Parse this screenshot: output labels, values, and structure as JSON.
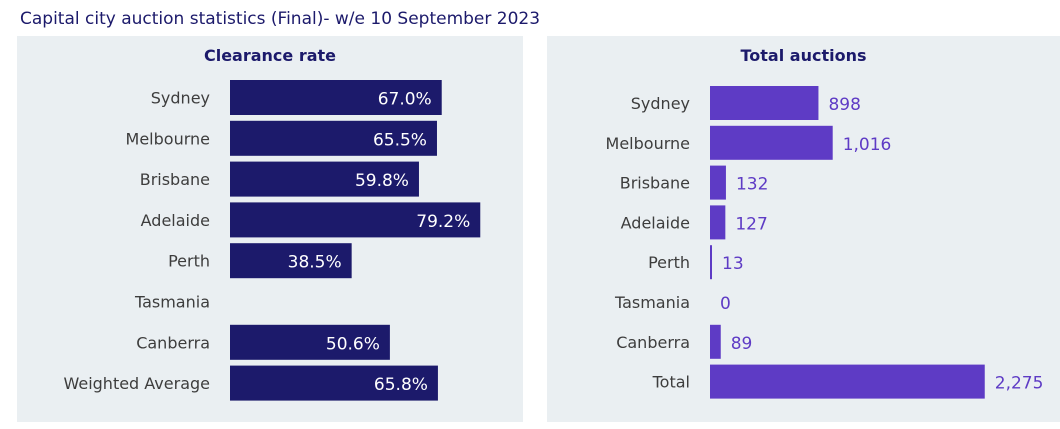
{
  "title": "Capital city auction statistics (Final)- w/e 10 September 2023",
  "colors": {
    "clearance_bar": "#1c1a6b",
    "auctions_bar": "#5e3bc5",
    "panel_bg": "#eaeff2"
  },
  "chart_data": [
    {
      "type": "bar",
      "orientation": "horizontal",
      "title": "Clearance rate",
      "categories": [
        "Sydney",
        "Melbourne",
        "Brisbane",
        "Adelaide",
        "Perth",
        "Tasmania",
        "Canberra",
        "Weighted Average"
      ],
      "values": [
        67.0,
        65.5,
        59.8,
        79.2,
        38.5,
        null,
        50.6,
        65.8
      ],
      "labels": [
        "67.0%",
        "65.5%",
        "59.8%",
        "79.2%",
        "38.5%",
        "",
        "50.6%",
        "65.8%"
      ],
      "xlim": [
        0,
        100
      ],
      "grid": false,
      "color": "#1c1a6b"
    },
    {
      "type": "bar",
      "orientation": "horizontal",
      "title": "Total auctions",
      "categories": [
        "Sydney",
        "Melbourne",
        "Brisbane",
        "Adelaide",
        "Perth",
        "Tasmania",
        "Canberra",
        "Total"
      ],
      "values": [
        898,
        1016,
        132,
        127,
        13,
        0,
        89,
        2275
      ],
      "labels": [
        "898",
        "1,016",
        "132",
        "127",
        "13",
        "0",
        "89",
        "2,275"
      ],
      "xlim": [
        0,
        2600
      ],
      "grid": false,
      "color": "#5e3bc5"
    }
  ]
}
